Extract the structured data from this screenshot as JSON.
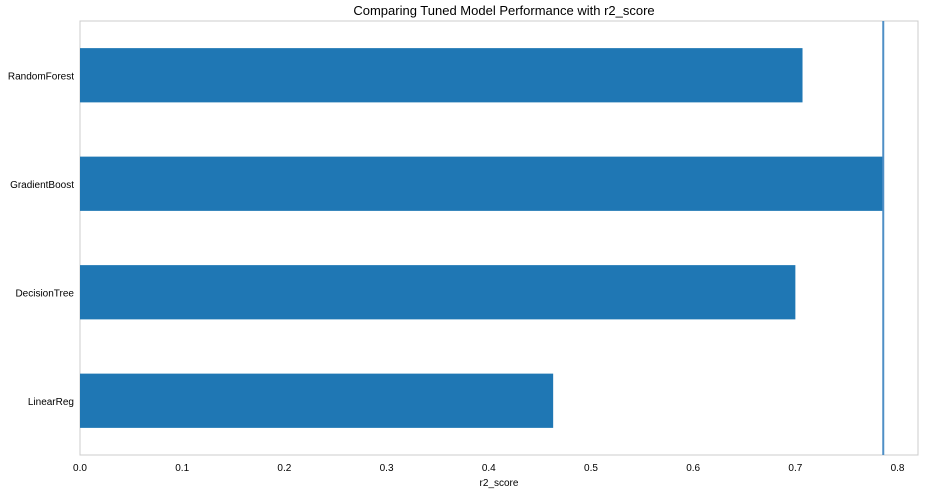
{
  "chart_data": {
    "type": "bar",
    "orientation": "horizontal",
    "title": "Comparing Tuned Model Performance with r2_score",
    "xlabel": "r2_score",
    "ylabel": "",
    "categories": [
      "LinearReg",
      "DecisionTree",
      "GradientBoost",
      "RandomForest"
    ],
    "values": [
      0.463,
      0.7,
      0.786,
      0.707
    ],
    "xlim": [
      0.0,
      0.82
    ],
    "xticks": [
      "0.0",
      "0.1",
      "0.2",
      "0.3",
      "0.4",
      "0.5",
      "0.6",
      "0.7",
      "0.8"
    ],
    "reference_line": {
      "value": 0.786,
      "color": "#4f8fc6"
    },
    "bar_color": "#1f77b4",
    "grid": false,
    "legend": "none"
  }
}
